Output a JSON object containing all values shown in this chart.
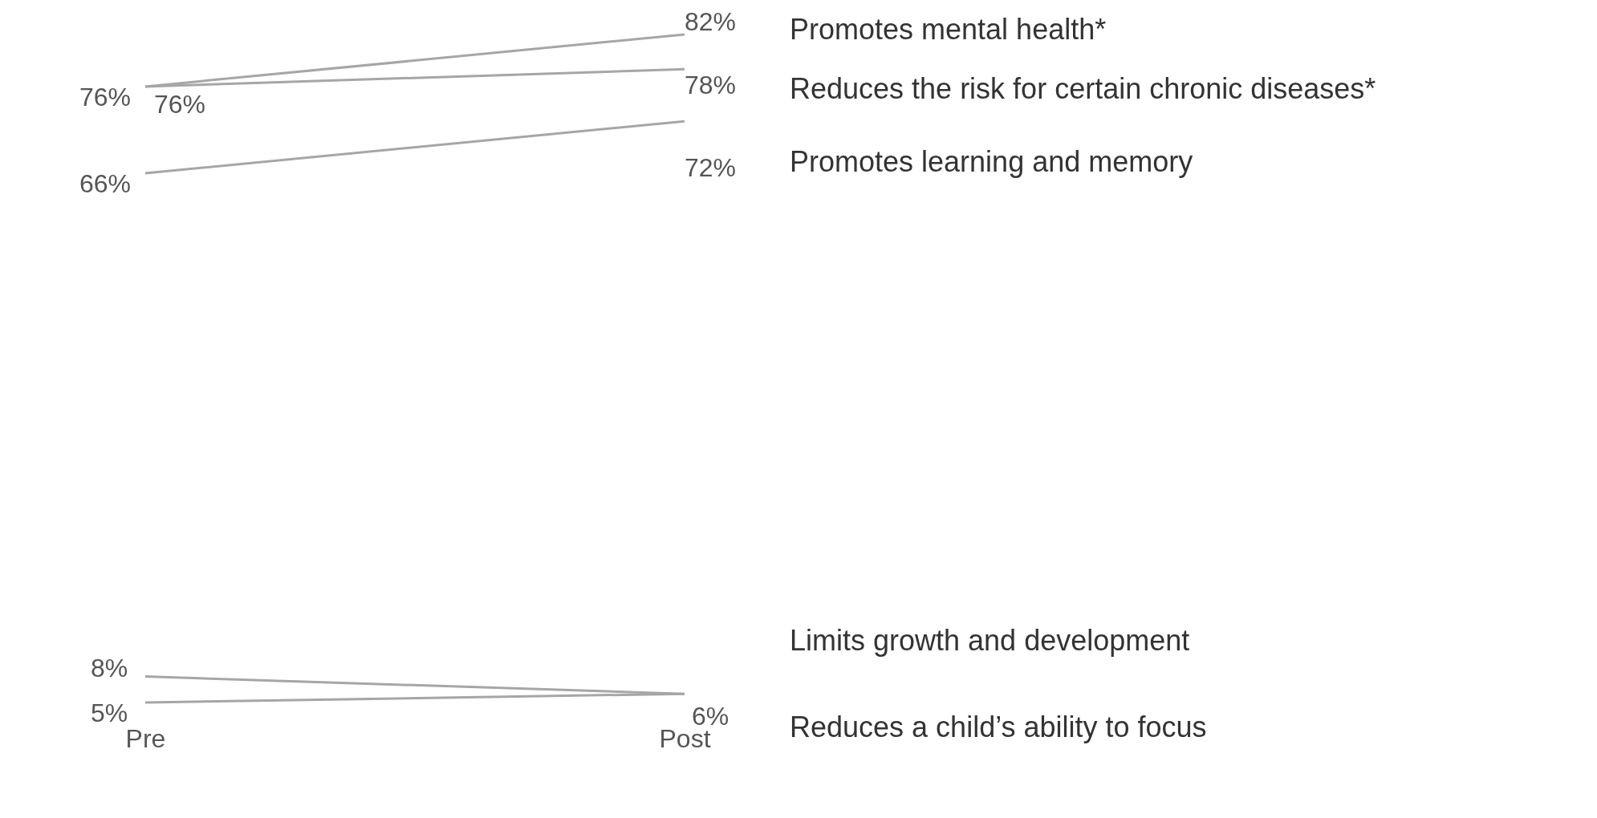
{
  "chart_data": {
    "type": "line",
    "categories": [
      "Pre",
      "Post"
    ],
    "tick_labels": "x",
    "series": [
      {
        "name": "Promotes mental health*",
        "color": "#a6a6a6",
        "values": [
          76,
          82
        ],
        "value_labels": [
          "76%",
          "82%"
        ]
      },
      {
        "name": "Reduces the risk for certain chronic diseases*",
        "color": "#a6a6a6",
        "values": [
          76,
          78
        ],
        "value_labels": [
          "76%",
          "78%"
        ]
      },
      {
        "name": "Promotes learning and memory",
        "color": "#a6a6a6",
        "values": [
          66,
          72
        ],
        "value_labels": [
          "66%",
          "72%"
        ]
      },
      {
        "name": "Limits growth and development",
        "color": "#a6a6a6",
        "values": [
          8,
          6
        ],
        "value_labels": [
          "8%",
          null
        ]
      },
      {
        "name": "Reduces a child’s ability to focus",
        "color": "#a6a6a6",
        "values": [
          5,
          6
        ],
        "value_labels": [
          "5%",
          "6%"
        ]
      }
    ]
  }
}
